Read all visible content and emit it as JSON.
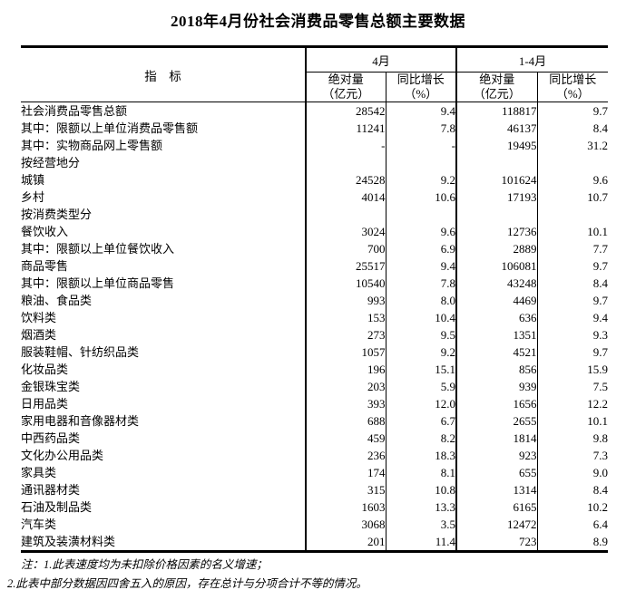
{
  "title": "2018年4月份社会消费品零售总额主要数据",
  "colors": {
    "text": "#000000",
    "border": "#000000",
    "background": "#ffffff"
  },
  "table": {
    "header": {
      "indicator": "指　标",
      "april": "4月",
      "jan_apr": "1-4月",
      "abs_line1": "绝对量",
      "abs_line2": "（亿元）",
      "yoy_line1": "同比增长",
      "yoy_line2": "（%）"
    },
    "rows": [
      {
        "indicator": "社会消费品零售总额",
        "indent": 0,
        "apr_abs": "28542",
        "apr_yoy": "9.4",
        "cum_abs": "118817",
        "cum_yoy": "9.7"
      },
      {
        "indicator": "其中：限额以上单位消费品零售额",
        "indent": 1,
        "apr_abs": "11241",
        "apr_yoy": "7.8",
        "cum_abs": "46137",
        "cum_yoy": "8.4"
      },
      {
        "indicator": "其中：实物商品网上零售额",
        "indent": 1.5,
        "apr_abs": "-",
        "apr_yoy": "-",
        "cum_abs": "19495",
        "cum_yoy": "31.2"
      },
      {
        "indicator": "按经营地分",
        "indent": 0,
        "apr_abs": "",
        "apr_yoy": "",
        "cum_abs": "",
        "cum_yoy": ""
      },
      {
        "indicator": "城镇",
        "indent": 1,
        "apr_abs": "24528",
        "apr_yoy": "9.2",
        "cum_abs": "101624",
        "cum_yoy": "9.6"
      },
      {
        "indicator": "乡村",
        "indent": 1,
        "apr_abs": "4014",
        "apr_yoy": "10.6",
        "cum_abs": "17193",
        "cum_yoy": "10.7"
      },
      {
        "indicator": "按消费类型分",
        "indent": 0,
        "apr_abs": "",
        "apr_yoy": "",
        "cum_abs": "",
        "cum_yoy": ""
      },
      {
        "indicator": "餐饮收入",
        "indent": 1,
        "apr_abs": "3024",
        "apr_yoy": "9.6",
        "cum_abs": "12736",
        "cum_yoy": "10.1"
      },
      {
        "indicator": "其中：限额以上单位餐饮收入",
        "indent": 2,
        "apr_abs": "700",
        "apr_yoy": "6.9",
        "cum_abs": "2889",
        "cum_yoy": "7.7"
      },
      {
        "indicator": "商品零售",
        "indent": 1,
        "apr_abs": "25517",
        "apr_yoy": "9.4",
        "cum_abs": "106081",
        "cum_yoy": "9.7"
      },
      {
        "indicator": "其中：限额以上单位商品零售",
        "indent": 2,
        "apr_abs": "10540",
        "apr_yoy": "7.8",
        "cum_abs": "43248",
        "cum_yoy": "8.4"
      },
      {
        "indicator": "粮油、食品类",
        "indent": 3,
        "apr_abs": "993",
        "apr_yoy": "8.0",
        "cum_abs": "4469",
        "cum_yoy": "9.7"
      },
      {
        "indicator": "饮料类",
        "indent": 3,
        "apr_abs": "153",
        "apr_yoy": "10.4",
        "cum_abs": "636",
        "cum_yoy": "9.4"
      },
      {
        "indicator": "烟酒类",
        "indent": 3,
        "apr_abs": "273",
        "apr_yoy": "9.5",
        "cum_abs": "1351",
        "cum_yoy": "9.3"
      },
      {
        "indicator": "服装鞋帽、针纺织品类",
        "indent": 3,
        "apr_abs": "1057",
        "apr_yoy": "9.2",
        "cum_abs": "4521",
        "cum_yoy": "9.7"
      },
      {
        "indicator": "化妆品类",
        "indent": 3,
        "apr_abs": "196",
        "apr_yoy": "15.1",
        "cum_abs": "856",
        "cum_yoy": "15.9"
      },
      {
        "indicator": "金银珠宝类",
        "indent": 3,
        "apr_abs": "203",
        "apr_yoy": "5.9",
        "cum_abs": "939",
        "cum_yoy": "7.5"
      },
      {
        "indicator": "日用品类",
        "indent": 3,
        "apr_abs": "393",
        "apr_yoy": "12.0",
        "cum_abs": "1656",
        "cum_yoy": "12.2"
      },
      {
        "indicator": "家用电器和音像器材类",
        "indent": 3,
        "apr_abs": "688",
        "apr_yoy": "6.7",
        "cum_abs": "2655",
        "cum_yoy": "10.1"
      },
      {
        "indicator": "中西药品类",
        "indent": 3,
        "apr_abs": "459",
        "apr_yoy": "8.2",
        "cum_abs": "1814",
        "cum_yoy": "9.8"
      },
      {
        "indicator": "文化办公用品类",
        "indent": 3,
        "apr_abs": "236",
        "apr_yoy": "18.3",
        "cum_abs": "923",
        "cum_yoy": "7.3"
      },
      {
        "indicator": "家具类",
        "indent": 3,
        "apr_abs": "174",
        "apr_yoy": "8.1",
        "cum_abs": "655",
        "cum_yoy": "9.0"
      },
      {
        "indicator": "通讯器材类",
        "indent": 3,
        "apr_abs": "315",
        "apr_yoy": "10.8",
        "cum_abs": "1314",
        "cum_yoy": "8.4"
      },
      {
        "indicator": "石油及制品类",
        "indent": 3,
        "apr_abs": "1603",
        "apr_yoy": "13.3",
        "cum_abs": "6165",
        "cum_yoy": "10.2"
      },
      {
        "indicator": "汽车类",
        "indent": 3,
        "apr_abs": "3068",
        "apr_yoy": "3.5",
        "cum_abs": "12472",
        "cum_yoy": "6.4"
      },
      {
        "indicator": "建筑及装潢材料类",
        "indent": 3,
        "apr_abs": "201",
        "apr_yoy": "11.4",
        "cum_abs": "723",
        "cum_yoy": "8.9"
      }
    ]
  },
  "notes": [
    "注：1.此表速度均为未扣除价格因素的名义增速；",
    "2.此表中部分数据因四舍五入的原因，存在总计与分项合计不等的情况。"
  ]
}
